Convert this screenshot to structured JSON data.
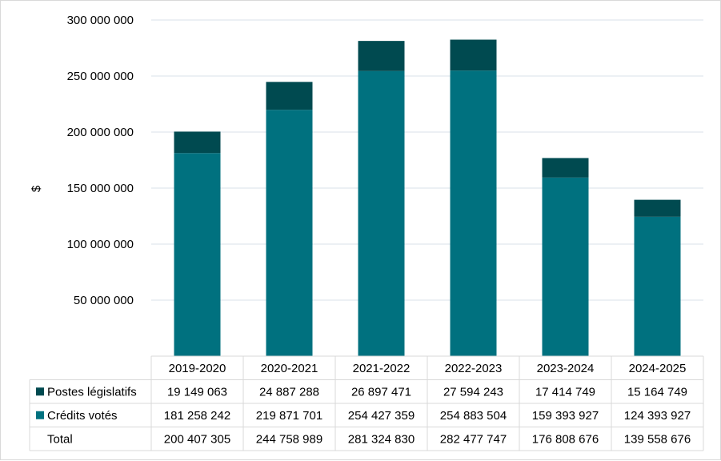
{
  "chart_data": {
    "type": "bar",
    "stacked": true,
    "ylabel": "$",
    "ylim": [
      0,
      300000000
    ],
    "yticks": [
      "50 000 000",
      "100 000 000",
      "150 000 000",
      "200 000 000",
      "250 000 000",
      "300 000 000"
    ],
    "ytick_values": [
      50000000,
      100000000,
      150000000,
      200000000,
      250000000,
      300000000
    ],
    "grid": true,
    "legend": "data-table-left",
    "categories": [
      "2019-2020",
      "2020-2021",
      "2021-2022",
      "2022-2023",
      "2023-2024",
      "2024-2025"
    ],
    "series": [
      {
        "name": "Crédits votés",
        "color": "#00717f",
        "values": [
          181258242,
          219871701,
          254427359,
          254883504,
          159393927,
          124393927
        ],
        "labels": [
          "181 258 242",
          "219 871 701",
          "254 427 359",
          "254 883 504",
          "159 393 927",
          "124 393 927"
        ]
      },
      {
        "name": "Postes législatifs",
        "color": "#004a50",
        "values": [
          19149063,
          24887288,
          26897471,
          27594243,
          17414749,
          15164749
        ],
        "labels": [
          "19 149 063",
          "24 887 288",
          "26 897 471",
          "27 594 243",
          "17 414 749",
          "15 164 749"
        ]
      }
    ],
    "total": {
      "name": "Total",
      "labels": [
        "200 407 305",
        "244 758 989",
        "281 324 830",
        "282 477 747",
        "176 808 676",
        "139 558 676"
      ]
    }
  }
}
